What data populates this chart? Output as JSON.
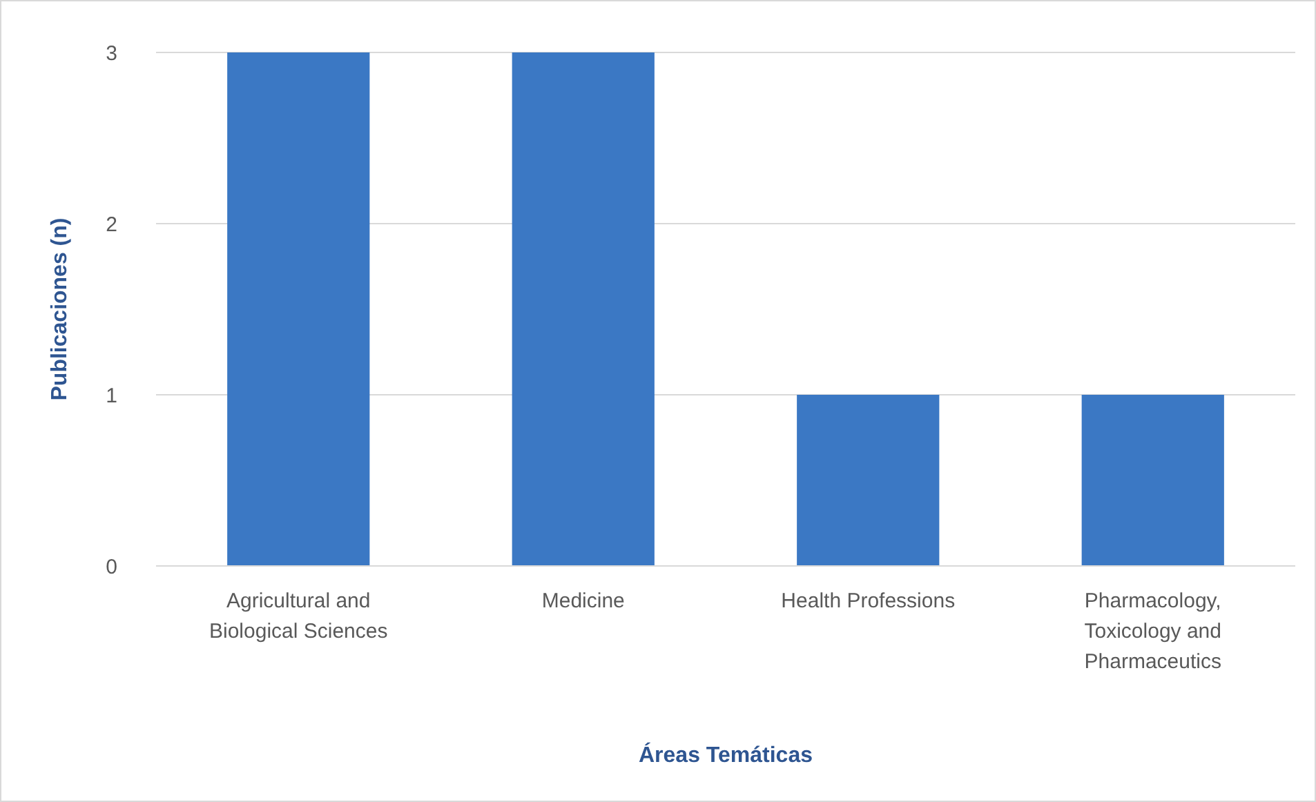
{
  "chart_data": {
    "type": "bar",
    "xlabel": "Áreas Temáticas",
    "ylabel": "Publicaciones (n)",
    "categories": [
      "Agricultural and Biological Sciences",
      "Medicine",
      "Health Professions",
      "Pharmacology, Toxicology and Pharmaceutics"
    ],
    "values": [
      3,
      3,
      1,
      1
    ],
    "color": "#3b78c4",
    "ylim": [
      0,
      3
    ],
    "yticks": [
      0,
      1,
      2,
      3
    ],
    "grid": "y"
  }
}
